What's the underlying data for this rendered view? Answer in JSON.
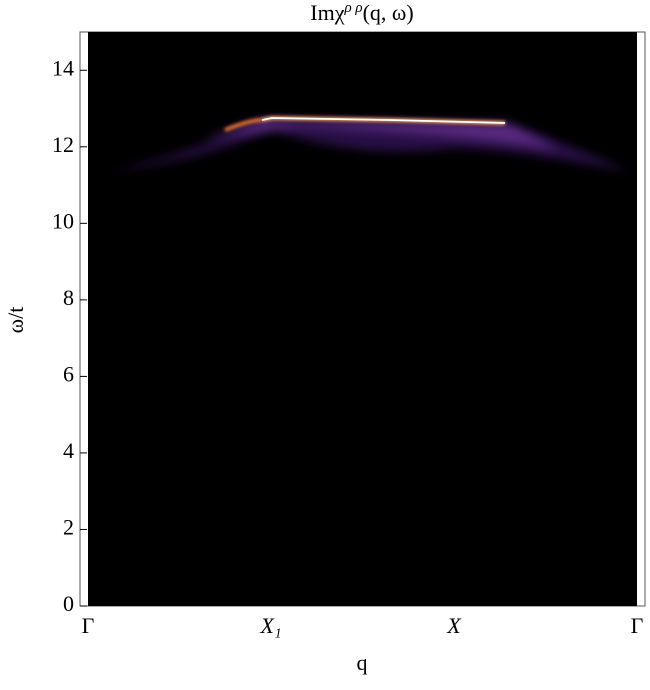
{
  "chart_data": {
    "type": "heatmap",
    "title": {
      "base": "Imχ",
      "superscript": "ρ ρ",
      "rest": "(q, ω)"
    },
    "x_label": "q",
    "y_label": "ω/t",
    "categories": [
      "Γ",
      "X₁",
      "X",
      "Γ"
    ],
    "ylim": [
      0,
      15
    ],
    "yticks": [
      0,
      2,
      4,
      6,
      8,
      10,
      12,
      14
    ]
  }
}
